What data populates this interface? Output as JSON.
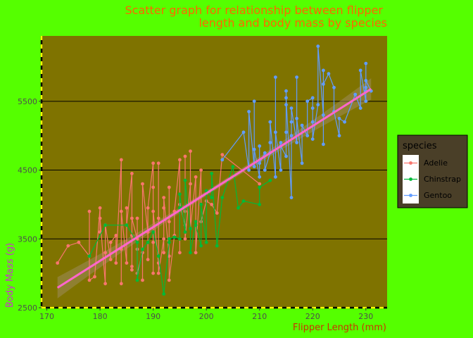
{
  "colors": {
    "background": "#55ff00",
    "panel": "#7f7300",
    "title": "#ff6600",
    "xlabel": "#cc3300",
    "ylabel": "#cc33cc",
    "fit_line": "#ff66cc",
    "confidence_band": "#9c8a5a",
    "legend_bg": "#4a3f28",
    "axis_dash": "#ffff00"
  },
  "chart_data": {
    "type": "scatter",
    "title_lines": [
      "Scatter graph for relationship between flipper",
      "length and body mass by species"
    ],
    "xlabel": "Flipper Length (mm)",
    "ylabel": "Body Mass (g)",
    "xlim": [
      169,
      234
    ],
    "ylim": [
      2500,
      6450
    ],
    "x_ticks": [
      170,
      180,
      190,
      200,
      210,
      220,
      230
    ],
    "y_ticks": [
      2500,
      3500,
      4500,
      5500
    ],
    "grid": "horizontal major lines",
    "legend": {
      "title": "species",
      "position": "right"
    },
    "fit": {
      "x": [
        172,
        231
      ],
      "y": [
        2790,
        5680
      ]
    },
    "series": [
      {
        "name": "Adelie",
        "color": "#f8766d",
        "points": [
          [
            172,
            3150
          ],
          [
            174,
            3400
          ],
          [
            176,
            3450
          ],
          [
            178,
            3250
          ],
          [
            178,
            3900
          ],
          [
            178,
            2900
          ],
          [
            179,
            2950
          ],
          [
            180,
            3950
          ],
          [
            180,
            3600
          ],
          [
            180,
            3800
          ],
          [
            181,
            2850
          ],
          [
            181,
            3300
          ],
          [
            181,
            3700
          ],
          [
            182,
            3200
          ],
          [
            182,
            3450
          ],
          [
            183,
            3550
          ],
          [
            183,
            3150
          ],
          [
            184,
            4650
          ],
          [
            184,
            2850
          ],
          [
            184,
            3350
          ],
          [
            184,
            3900
          ],
          [
            185,
            3150
          ],
          [
            185,
            3950
          ],
          [
            185,
            3700
          ],
          [
            186,
            4450
          ],
          [
            186,
            3050
          ],
          [
            186,
            3100
          ],
          [
            186,
            3550
          ],
          [
            186,
            3800
          ],
          [
            187,
            3500
          ],
          [
            187,
            3350
          ],
          [
            187,
            3800
          ],
          [
            187,
            3000
          ],
          [
            188,
            3300
          ],
          [
            188,
            2900
          ],
          [
            188,
            3350
          ],
          [
            188,
            4300
          ],
          [
            189,
            3600
          ],
          [
            189,
            3200
          ],
          [
            189,
            3950
          ],
          [
            190,
            4600
          ],
          [
            190,
            4250
          ],
          [
            190,
            3000
          ],
          [
            190,
            3450
          ],
          [
            190,
            3900
          ],
          [
            191,
            3150
          ],
          [
            191,
            3800
          ],
          [
            191,
            4600
          ],
          [
            191,
            3000
          ],
          [
            192,
            3500
          ],
          [
            192,
            3950
          ],
          [
            192,
            3300
          ],
          [
            192,
            4100
          ],
          [
            193,
            3250
          ],
          [
            193,
            4250
          ],
          [
            193,
            3750
          ],
          [
            193,
            2900
          ],
          [
            194,
            3550
          ],
          [
            194,
            3900
          ],
          [
            195,
            4650
          ],
          [
            195,
            3300
          ],
          [
            195,
            4000
          ],
          [
            196,
            3700
          ],
          [
            196,
            4700
          ],
          [
            196,
            3900
          ],
          [
            196,
            3500
          ],
          [
            197,
            4300
          ],
          [
            197,
            4775
          ],
          [
            197,
            3650
          ],
          [
            198,
            4400
          ],
          [
            198,
            3300
          ],
          [
            199,
            4500
          ],
          [
            199,
            3750
          ],
          [
            200,
            4050
          ],
          [
            201,
            4000
          ],
          [
            202,
            3875
          ],
          [
            203,
            4725
          ],
          [
            210,
            4300
          ]
        ]
      },
      {
        "name": "Chinstrap",
        "color": "#00ba38",
        "points": [
          [
            178,
            3250
          ],
          [
            181,
            3700
          ],
          [
            185,
            3700
          ],
          [
            187,
            3450
          ],
          [
            187,
            2900
          ],
          [
            188,
            3350
          ],
          [
            189,
            3450
          ],
          [
            190,
            3600
          ],
          [
            191,
            3250
          ],
          [
            192,
            2700
          ],
          [
            193,
            3450
          ],
          [
            193,
            3500
          ],
          [
            194,
            3525
          ],
          [
            195,
            3500
          ],
          [
            195,
            3950
          ],
          [
            195,
            4150
          ],
          [
            196,
            3600
          ],
          [
            196,
            4350
          ],
          [
            197,
            3650
          ],
          [
            197,
            3300
          ],
          [
            198,
            3750
          ],
          [
            198,
            3700
          ],
          [
            199,
            3400
          ],
          [
            199,
            4000
          ],
          [
            200,
            3450
          ],
          [
            200,
            4200
          ],
          [
            201,
            4100
          ],
          [
            201,
            4450
          ],
          [
            202,
            3400
          ],
          [
            203,
            4100
          ],
          [
            205,
            4550
          ],
          [
            206,
            3950
          ],
          [
            207,
            4050
          ],
          [
            210,
            4000
          ],
          [
            210,
            4250
          ],
          [
            212,
            4350
          ]
        ]
      },
      {
        "name": "Gentoo",
        "color": "#619cff",
        "points": [
          [
            203,
            4650
          ],
          [
            207,
            5050
          ],
          [
            208,
            4500
          ],
          [
            208,
            5350
          ],
          [
            209,
            4550
          ],
          [
            209,
            5500
          ],
          [
            209,
            4800
          ],
          [
            210,
            4400
          ],
          [
            210,
            4850
          ],
          [
            210,
            4600
          ],
          [
            211,
            4750
          ],
          [
            211,
            4500
          ],
          [
            212,
            4750
          ],
          [
            212,
            4900
          ],
          [
            212,
            5200
          ],
          [
            213,
            4400
          ],
          [
            213,
            5850
          ],
          [
            213,
            5050
          ],
          [
            214,
            4500
          ],
          [
            214,
            4900
          ],
          [
            214,
            4850
          ],
          [
            215,
            4700
          ],
          [
            215,
            5650
          ],
          [
            215,
            5450
          ],
          [
            215,
            5050
          ],
          [
            215,
            5550
          ],
          [
            216,
            4100
          ],
          [
            216,
            5000
          ],
          [
            216,
            5200
          ],
          [
            216,
            5400
          ],
          [
            217,
            4900
          ],
          [
            217,
            5850
          ],
          [
            217,
            5250
          ],
          [
            218,
            4600
          ],
          [
            218,
            5150
          ],
          [
            219,
            5000
          ],
          [
            219,
            5500
          ],
          [
            220,
            5550
          ],
          [
            220,
            5400
          ],
          [
            220,
            5200
          ],
          [
            220,
            4950
          ],
          [
            221,
            5450
          ],
          [
            221,
            6300
          ],
          [
            222,
            5300
          ],
          [
            222,
            5950
          ],
          [
            222,
            4875
          ],
          [
            222,
            5750
          ],
          [
            223,
            5900
          ],
          [
            224,
            5700
          ],
          [
            224,
            5350
          ],
          [
            225,
            5000
          ],
          [
            225,
            5250
          ],
          [
            226,
            5200
          ],
          [
            228,
            5600
          ],
          [
            229,
            5400
          ],
          [
            229,
            5950
          ],
          [
            230,
            5500
          ],
          [
            230,
            5700
          ],
          [
            230,
            6050
          ],
          [
            230,
            5650
          ],
          [
            230,
            5800
          ],
          [
            231,
            5650
          ]
        ]
      }
    ]
  }
}
